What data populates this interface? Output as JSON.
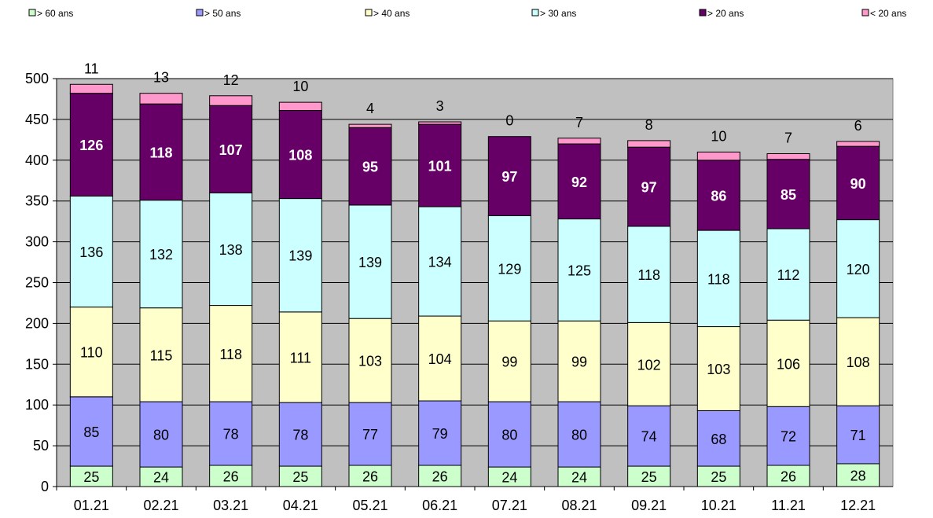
{
  "chart_data": {
    "type": "bar",
    "stacked": true,
    "categories": [
      "01.21",
      "02.21",
      "03.21",
      "04.21",
      "05.21",
      "06.21",
      "07.21",
      "08.21",
      "09.21",
      "10.21",
      "11.21",
      "12.21"
    ],
    "ylim": [
      0,
      500
    ],
    "yticks": [
      0,
      50,
      100,
      150,
      200,
      250,
      300,
      350,
      400,
      450,
      500
    ],
    "grid": true,
    "legend_position": "top",
    "series": [
      {
        "name": "> 60 ans",
        "color": "#ccffcc",
        "label_color": "#000000",
        "values": [
          25,
          24,
          26,
          25,
          26,
          26,
          24,
          24,
          25,
          25,
          26,
          28
        ]
      },
      {
        "name": "> 50 ans",
        "color": "#9999ff",
        "label_color": "#000000",
        "values": [
          85,
          80,
          78,
          78,
          77,
          79,
          80,
          80,
          74,
          68,
          72,
          71
        ]
      },
      {
        "name": "> 40 ans",
        "color": "#ffffcc",
        "label_color": "#000000",
        "values": [
          110,
          115,
          118,
          111,
          103,
          104,
          99,
          99,
          102,
          103,
          106,
          108
        ]
      },
      {
        "name": "> 30 ans",
        "color": "#ccffff",
        "label_color": "#000000",
        "values": [
          136,
          132,
          138,
          139,
          139,
          134,
          129,
          125,
          118,
          118,
          112,
          120
        ]
      },
      {
        "name": "> 20 ans",
        "color": "#660066",
        "label_color": "#ffffff",
        "values": [
          126,
          118,
          107,
          108,
          95,
          101,
          97,
          92,
          97,
          86,
          85,
          90
        ]
      },
      {
        "name": "< 20 ans",
        "color": "#ff99cc",
        "label_color": "#000000",
        "values": [
          11,
          13,
          12,
          10,
          4,
          3,
          0,
          7,
          8,
          10,
          7,
          6
        ]
      }
    ],
    "plot_background": "#c0c0c0"
  }
}
